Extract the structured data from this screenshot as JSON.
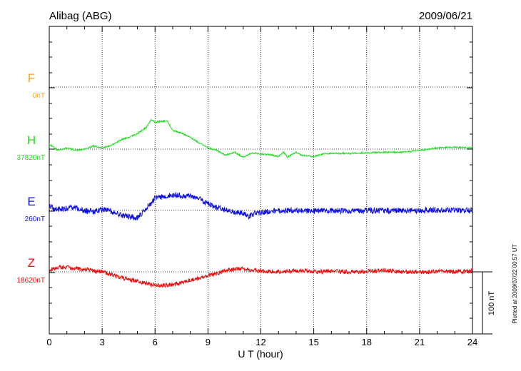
{
  "station_title": "Alibag (ABG)",
  "date": "2009/06/21",
  "plotted_note": "Plotted at 2009/07/22 00:57 UT",
  "scale_bar": {
    "label": "100 nT",
    "value_nT": 100
  },
  "chart_data": {
    "type": "line",
    "title": "Alibag (ABG)",
    "xlabel": "U T (hour)",
    "xlim": [
      0,
      24
    ],
    "xticks": [
      "0",
      "3",
      "6",
      "9",
      "12",
      "15",
      "18",
      "21",
      "24"
    ],
    "grid": true,
    "series": [
      {
        "name": "F",
        "baseline_label": "0nT",
        "color": "#f5a623",
        "x": [],
        "values": []
      },
      {
        "name": "H",
        "baseline_label": "37820nT",
        "color": "#22dd22",
        "x": [
          0,
          0.5,
          1,
          1.5,
          2,
          2.5,
          3,
          3.5,
          4,
          4.5,
          5,
          5.5,
          5.8,
          6,
          6.3,
          6.7,
          7,
          7.5,
          8,
          8.5,
          9,
          9.5,
          10,
          10.5,
          11,
          11.5,
          12,
          12.5,
          13,
          13.3,
          13.5,
          13.8,
          14,
          14.3,
          15,
          15.5,
          16,
          17,
          18,
          19,
          20,
          21,
          22,
          23,
          24
        ],
        "values": [
          8,
          -2,
          2,
          -2,
          0,
          5,
          2,
          6,
          14,
          19,
          25,
          35,
          48,
          43,
          45,
          45,
          30,
          26,
          19,
          10,
          2,
          -2,
          -10,
          -5,
          -13,
          -6,
          -8,
          -9,
          -12,
          -5,
          -13,
          -8,
          -5,
          -10,
          -12,
          -8,
          -7,
          -7,
          -6,
          -5,
          -5,
          -2,
          2,
          3,
          2
        ]
      },
      {
        "name": "E",
        "baseline_label": "260nT",
        "color": "#1010dd",
        "x": [
          0,
          0.5,
          1,
          1.5,
          2,
          2.5,
          3,
          3.3,
          3.6,
          4,
          4.5,
          5,
          5.3,
          5.7,
          6,
          6.5,
          7,
          7.5,
          8,
          8.5,
          9,
          9.5,
          10,
          10.5,
          11,
          11.3,
          11.6,
          12,
          13,
          14,
          15,
          16,
          17,
          18,
          19,
          20,
          21,
          22,
          23,
          24
        ],
        "values": [
          6,
          2,
          3,
          4,
          0,
          -2,
          2,
          0,
          -2,
          -6,
          -10,
          -12,
          -3,
          10,
          20,
          22,
          25,
          24,
          22,
          19,
          10,
          5,
          2,
          -2,
          -4,
          -10,
          -5,
          -3,
          0,
          0,
          -1,
          0,
          -1,
          0,
          -1,
          0,
          0,
          1,
          0,
          0
        ]
      },
      {
        "name": "Z",
        "baseline_label": "18620nT",
        "color": "#e81010",
        "x": [
          0,
          0.5,
          1,
          1.5,
          2,
          2.5,
          3,
          3.5,
          4,
          4.5,
          5,
          5.5,
          6,
          6.5,
          7,
          7.5,
          8,
          8.5,
          9,
          9.5,
          10,
          10.5,
          11,
          11.5,
          12,
          13,
          14,
          15,
          16,
          17,
          18,
          19,
          20,
          21,
          22,
          23,
          24
        ],
        "values": [
          3,
          8,
          7,
          5,
          4,
          2,
          0,
          -4,
          -8,
          -12,
          -15,
          -19,
          -22,
          -22,
          -20,
          -18,
          -14,
          -10,
          -6,
          -3,
          2,
          4,
          5,
          3,
          1,
          0,
          2,
          0,
          1,
          0,
          1,
          2,
          0,
          0,
          1,
          0,
          2
        ]
      }
    ]
  }
}
